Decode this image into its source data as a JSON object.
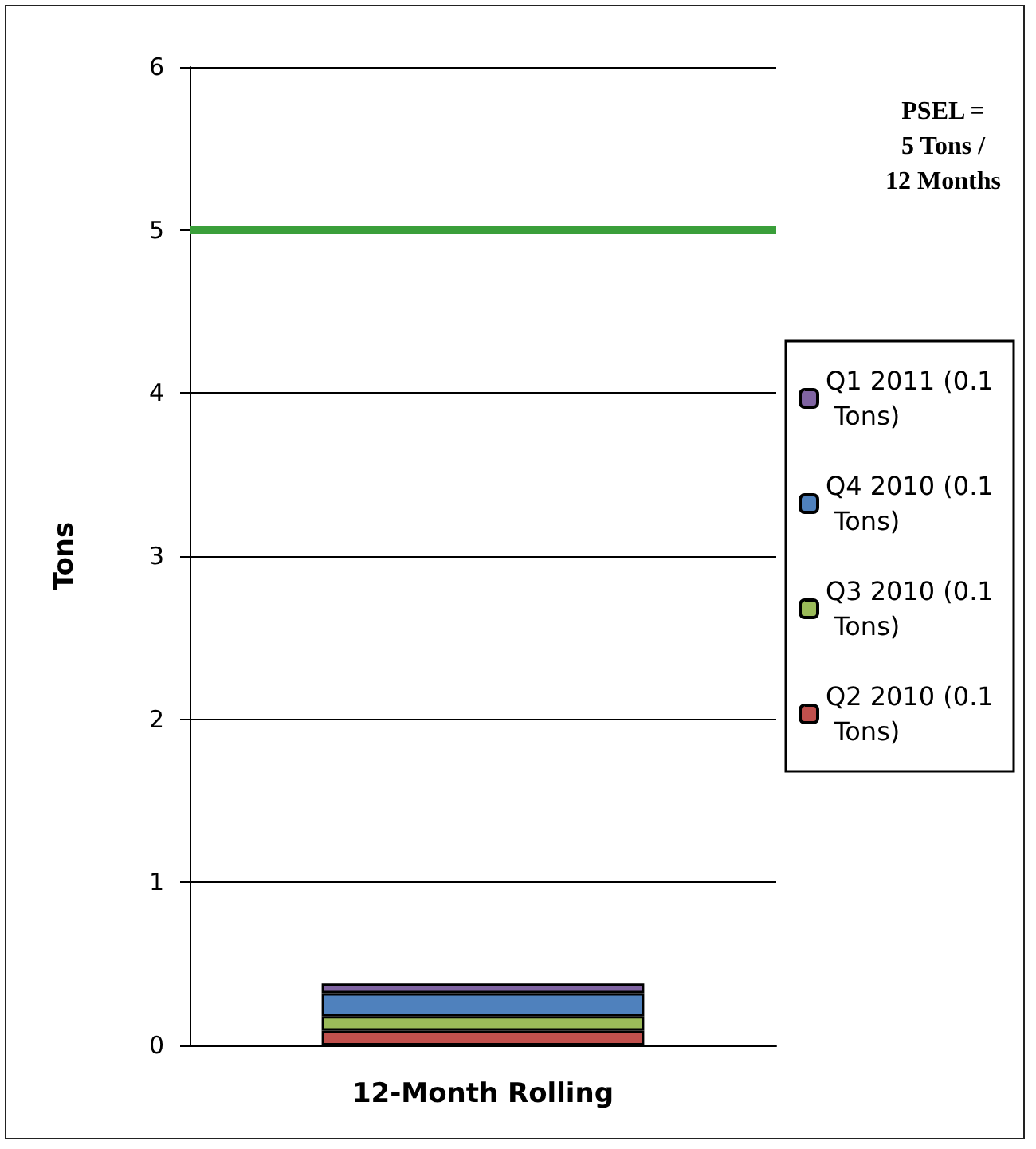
{
  "chart_data": {
    "type": "bar",
    "stacked": true,
    "ylabel": "Tons",
    "categories": [
      "12-Month Rolling"
    ],
    "series": [
      {
        "name": "Q2 2010 (0.1 Tons)",
        "color": "#c0504d",
        "values": [
          0.09
        ]
      },
      {
        "name": "Q3 2010 (0.1 Tons)",
        "color": "#9bbb59",
        "values": [
          0.09
        ]
      },
      {
        "name": "Q4 2010 (0.1 Tons)",
        "color": "#4f81bd",
        "values": [
          0.14
        ]
      },
      {
        "name": "Q1 2011 (0.1 Tons)",
        "color": "#8064a2",
        "values": [
          0.06
        ]
      }
    ],
    "ylim": [
      0,
      6
    ],
    "yticks": [
      0,
      1,
      2,
      3,
      4,
      5,
      6
    ],
    "grid": "y",
    "legend": "right",
    "ref_lines": [
      {
        "axis": "y",
        "value": 5,
        "color": "#3a9f3a"
      }
    ],
    "annotations": [
      "PSEL =\n5 Tons /\n12 Months"
    ]
  }
}
